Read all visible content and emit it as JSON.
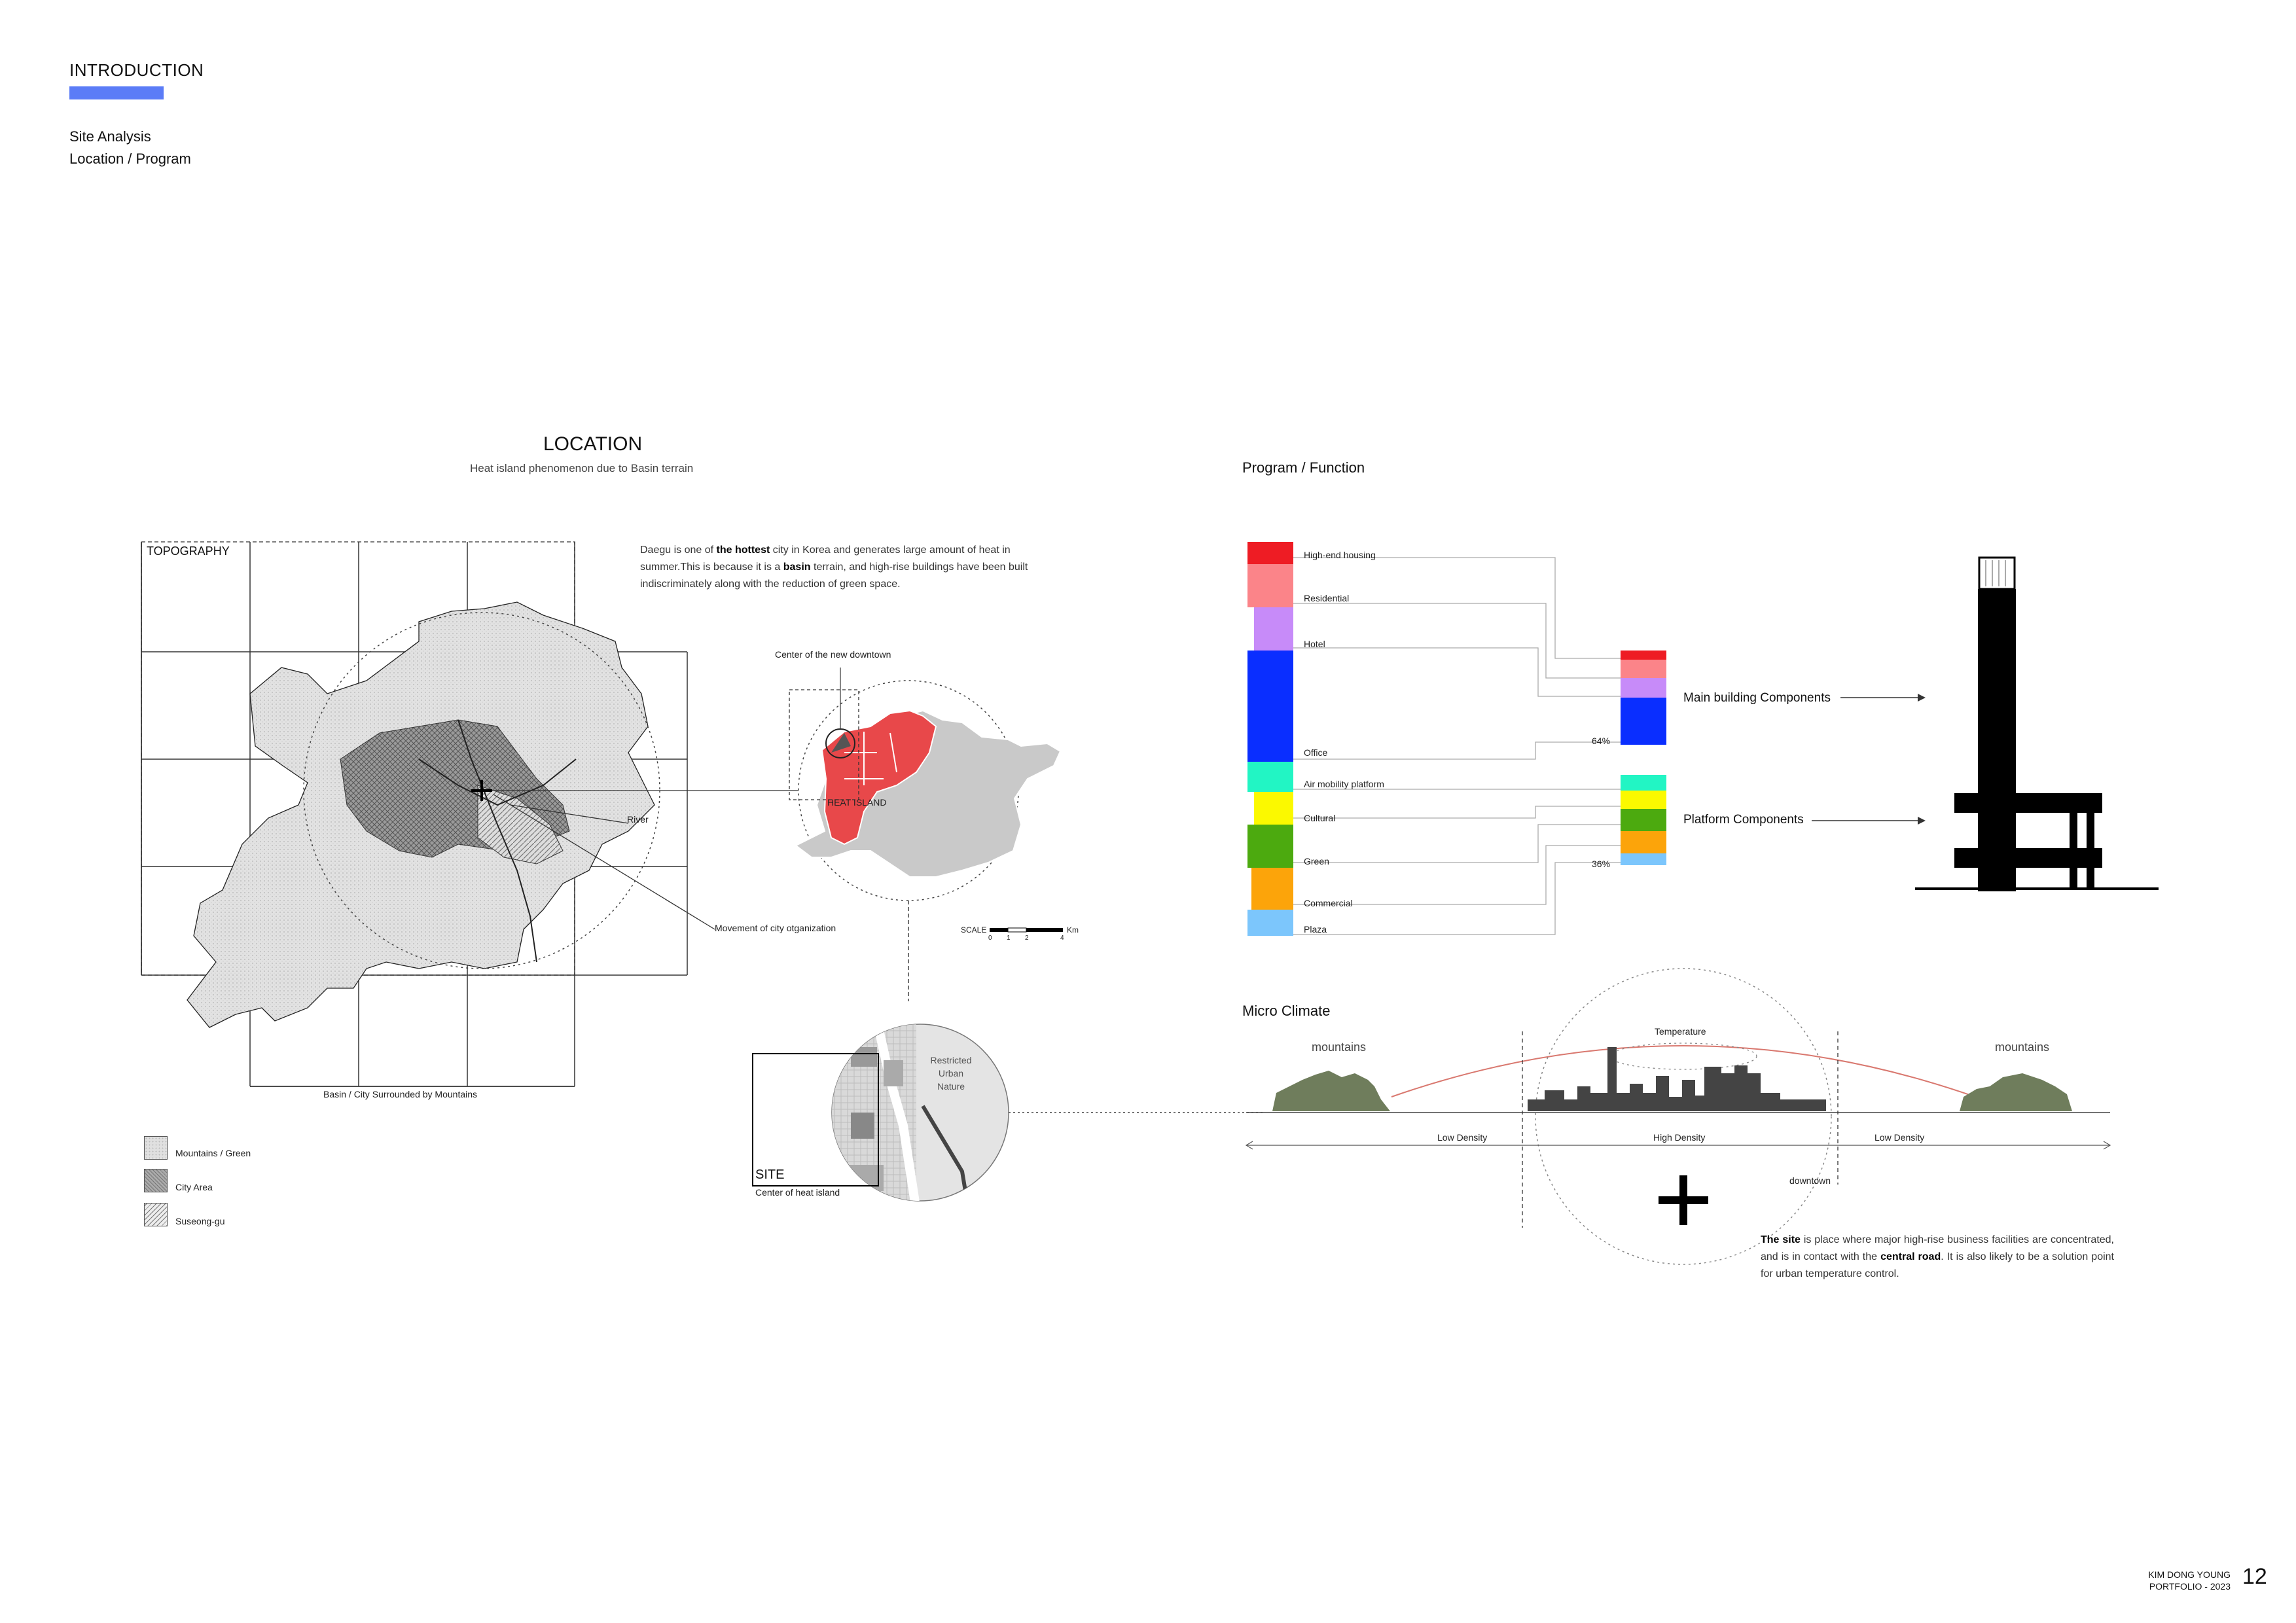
{
  "header": {
    "section": "INTRODUCTION",
    "subtitle_1": "Site Analysis",
    "subtitle_2": "Location / Program",
    "accent_color": "#5b7cf7"
  },
  "location": {
    "title": "LOCATION",
    "subtitle": "Heat island phenomenon due to Basin terrain",
    "topography_label": "TOPOGRAPHY",
    "description_parts": [
      "Daegu is one of ",
      "the hottest",
      " city in Korea and generates large amount of heat in summer.This is because it is a ",
      "basin",
      " terrain, and high-rise buildings have been built indiscriminately along with the reduction of green space."
    ],
    "basin_caption": "Basin / City Surrounded by Mountains",
    "river_label": "River",
    "movement_label": "Movement of city otganization",
    "new_downtown_label": "Center of the new downtown",
    "heat_island_label": "HEAT ISLAND",
    "scale_label": "SCALE",
    "scale_unit": "Km",
    "scale_ticks": [
      "0",
      "1",
      "2",
      "4"
    ],
    "restricted_label": [
      "Restricted",
      "Urban",
      "Nature"
    ],
    "site_label": "SITE",
    "site_caption": "Center of heat island",
    "legend": [
      {
        "label": "Mountains / Green",
        "pattern": "dots"
      },
      {
        "label": "City Area",
        "pattern": "crosshatch"
      },
      {
        "label": "Suseong-gu",
        "pattern": "diagonal"
      }
    ],
    "heat_color": "#e8484a"
  },
  "program": {
    "title": "Program / Function",
    "components": [
      {
        "label": "High-end housing",
        "color": "#ee1c24"
      },
      {
        "label": "Residential",
        "color": "#fb8489"
      },
      {
        "label": "Hotel",
        "color": "#c78bf9"
      },
      {
        "label": "Office",
        "color": "#0a2eff"
      },
      {
        "label": "Air mobility platform",
        "color": "#22f5c4"
      },
      {
        "label": "Cultural",
        "color": "#fbf900"
      },
      {
        "label": "Green",
        "color": "#4caa0f"
      },
      {
        "label": "Commercial",
        "color": "#fca40a"
      },
      {
        "label": "Plaza",
        "color": "#7cc6fc"
      }
    ],
    "main_label": "Main building Components",
    "main_percent": "64%",
    "platform_label": "Platform Components",
    "platform_percent": "36%"
  },
  "micro_climate": {
    "title": "Micro Climate",
    "mountains_left": "mountains",
    "mountains_right": "mountains",
    "temperature_label": "Temperature",
    "low_density_left": "Low Density",
    "high_density": "High Density",
    "low_density_right": "Low Density",
    "downtown_label": "downtown",
    "arc_color": "#d9786f"
  },
  "site_text_parts": [
    "The site",
    " is place where major high-rise business facilities are concentrated, and is in contact with the ",
    "central road",
    ". It is also likely to be a solution point for urban temperature control."
  ],
  "footer": {
    "name": "KIM DONG YOUNG",
    "portfolio": "PORTFOLIO - 2023",
    "page": "12"
  }
}
